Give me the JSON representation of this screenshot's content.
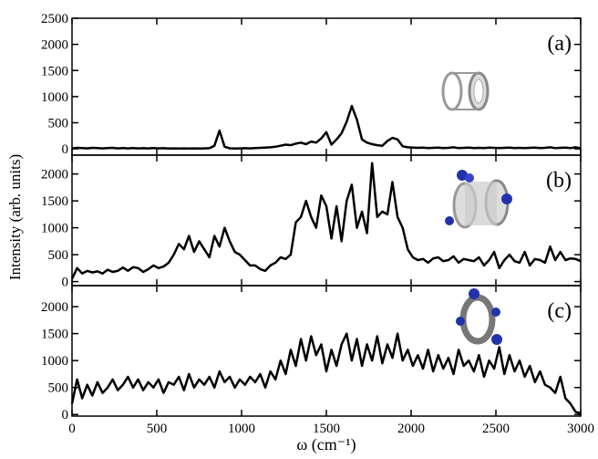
{
  "chart_data": [
    {
      "type": "line",
      "annotation": "(a)",
      "ylabel": "Intensity (arb. units)",
      "color": "#000000",
      "xlim": [
        0,
        3000
      ],
      "xticks": [
        0,
        500,
        1000,
        1500,
        2000,
        2500,
        3000
      ],
      "ylim": [
        -120,
        2500
      ],
      "yticks": [
        0,
        500,
        1000,
        1500,
        2000,
        2500
      ],
      "x": [
        0,
        30,
        60,
        90,
        120,
        150,
        180,
        210,
        240,
        270,
        300,
        330,
        360,
        390,
        420,
        450,
        480,
        510,
        540,
        570,
        600,
        630,
        660,
        690,
        720,
        750,
        780,
        810,
        840,
        870,
        900,
        930,
        960,
        990,
        1020,
        1050,
        1080,
        1110,
        1140,
        1170,
        1200,
        1230,
        1260,
        1290,
        1320,
        1350,
        1380,
        1410,
        1440,
        1470,
        1500,
        1530,
        1560,
        1590,
        1620,
        1650,
        1680,
        1710,
        1740,
        1770,
        1800,
        1830,
        1860,
        1890,
        1920,
        1950,
        1980,
        2010,
        2040,
        2070,
        2100,
        2130,
        2160,
        2190,
        2220,
        2250,
        2280,
        2310,
        2340,
        2370,
        2400,
        2430,
        2460,
        2490,
        2520,
        2550,
        2580,
        2610,
        2640,
        2670,
        2700,
        2730,
        2760,
        2790,
        2820,
        2850,
        2880,
        2910,
        2940,
        2970,
        3000
      ],
      "values": [
        10,
        20,
        15,
        10,
        20,
        15,
        10,
        15,
        20,
        10,
        15,
        10,
        15,
        10,
        12,
        10,
        15,
        10,
        12,
        8,
        10,
        8,
        10,
        8,
        10,
        8,
        10,
        12,
        60,
        350,
        40,
        10,
        8,
        10,
        12,
        10,
        15,
        20,
        25,
        30,
        40,
        60,
        80,
        70,
        100,
        120,
        90,
        140,
        120,
        200,
        320,
        80,
        180,
        300,
        520,
        820,
        560,
        180,
        120,
        90,
        70,
        60,
        150,
        210,
        180,
        50,
        30,
        25,
        20,
        25,
        15,
        20,
        25,
        15,
        20,
        30,
        15,
        20,
        25,
        15,
        20,
        15,
        25,
        20,
        15,
        20,
        25,
        15,
        20,
        15,
        20,
        25,
        15,
        20,
        30,
        15,
        20,
        25,
        15,
        30,
        10
      ]
    },
    {
      "type": "line",
      "annotation": "(b)",
      "color": "#000000",
      "xlim": [
        0,
        3000
      ],
      "xticks": [
        0,
        500,
        1000,
        1500,
        2000,
        2500,
        3000
      ],
      "ylim": [
        -75,
        2350
      ],
      "yticks": [
        0,
        500,
        1000,
        1500,
        2000
      ],
      "x": [
        0,
        30,
        60,
        90,
        120,
        150,
        180,
        210,
        240,
        270,
        300,
        330,
        360,
        390,
        420,
        450,
        480,
        510,
        540,
        570,
        600,
        630,
        660,
        690,
        720,
        750,
        780,
        810,
        840,
        870,
        900,
        930,
        960,
        990,
        1020,
        1050,
        1080,
        1110,
        1140,
        1170,
        1200,
        1230,
        1260,
        1290,
        1320,
        1350,
        1380,
        1410,
        1440,
        1470,
        1500,
        1530,
        1560,
        1590,
        1620,
        1650,
        1680,
        1710,
        1740,
        1770,
        1800,
        1830,
        1860,
        1890,
        1920,
        1950,
        1980,
        2010,
        2040,
        2070,
        2100,
        2130,
        2160,
        2190,
        2220,
        2250,
        2280,
        2310,
        2340,
        2370,
        2400,
        2430,
        2460,
        2490,
        2520,
        2550,
        2580,
        2610,
        2640,
        2670,
        2700,
        2730,
        2760,
        2790,
        2820,
        2850,
        2880,
        2910,
        2940,
        2970,
        3000
      ],
      "values": [
        50,
        250,
        150,
        200,
        170,
        190,
        150,
        220,
        180,
        200,
        260,
        200,
        270,
        250,
        180,
        230,
        300,
        250,
        280,
        350,
        500,
        700,
        600,
        850,
        550,
        750,
        600,
        450,
        850,
        650,
        1000,
        750,
        550,
        500,
        400,
        300,
        300,
        230,
        200,
        300,
        350,
        450,
        420,
        500,
        1100,
        1200,
        1500,
        1200,
        1000,
        1600,
        1400,
        800,
        1400,
        750,
        1500,
        1800,
        1000,
        1300,
        900,
        2200,
        1200,
        1300,
        1250,
        1850,
        1200,
        1000,
        600,
        450,
        400,
        420,
        350,
        430,
        450,
        380,
        400,
        470,
        350,
        420,
        400,
        380,
        450,
        300,
        400,
        550,
        250,
        400,
        500,
        380,
        350,
        550,
        300,
        420,
        400,
        350,
        650,
        400,
        550,
        400,
        430,
        420,
        380
      ]
    },
    {
      "type": "line",
      "annotation": "(c)",
      "xlabel": "ω (cm⁻¹)",
      "color": "#000000",
      "xlim": [
        0,
        3000
      ],
      "xticks": [
        0,
        500,
        1000,
        1500,
        2000,
        2500,
        3000
      ],
      "ylim": [
        -30,
        2390
      ],
      "yticks": [
        0,
        500,
        1000,
        1500,
        2000
      ],
      "x": [
        0,
        30,
        60,
        90,
        120,
        150,
        180,
        210,
        240,
        270,
        300,
        330,
        360,
        390,
        420,
        450,
        480,
        510,
        540,
        570,
        600,
        630,
        660,
        690,
        720,
        750,
        780,
        810,
        840,
        870,
        900,
        930,
        960,
        990,
        1020,
        1050,
        1080,
        1110,
        1140,
        1170,
        1200,
        1230,
        1260,
        1290,
        1320,
        1350,
        1380,
        1410,
        1440,
        1470,
        1500,
        1530,
        1560,
        1590,
        1620,
        1650,
        1680,
        1710,
        1740,
        1770,
        1800,
        1830,
        1860,
        1890,
        1920,
        1950,
        1980,
        2010,
        2040,
        2070,
        2100,
        2130,
        2160,
        2190,
        2220,
        2250,
        2280,
        2310,
        2340,
        2370,
        2400,
        2430,
        2460,
        2490,
        2520,
        2550,
        2580,
        2610,
        2640,
        2670,
        2700,
        2730,
        2760,
        2790,
        2820,
        2850,
        2880,
        2910,
        2940,
        2970,
        3000
      ],
      "values": [
        200,
        650,
        300,
        550,
        350,
        600,
        400,
        500,
        650,
        450,
        550,
        700,
        500,
        650,
        450,
        600,
        500,
        650,
        400,
        600,
        550,
        700,
        450,
        750,
        500,
        650,
        550,
        700,
        500,
        800,
        600,
        700,
        500,
        650,
        550,
        700,
        600,
        750,
        500,
        800,
        650,
        1000,
        750,
        1200,
        900,
        1400,
        1000,
        1450,
        1100,
        1300,
        800,
        1200,
        900,
        1300,
        1500,
        1000,
        1400,
        900,
        1300,
        1000,
        1450,
        950,
        1300,
        1050,
        1500,
        1000,
        1200,
        900,
        1100,
        850,
        1200,
        800,
        1100,
        850,
        1050,
        750,
        1200,
        900,
        1000,
        800,
        1100,
        700,
        1000,
        850,
        1250,
        750,
        1100,
        800,
        1000,
        700,
        900,
        600,
        800,
        550,
        500,
        400,
        700,
        300,
        200,
        50,
        20
      ]
    }
  ]
}
